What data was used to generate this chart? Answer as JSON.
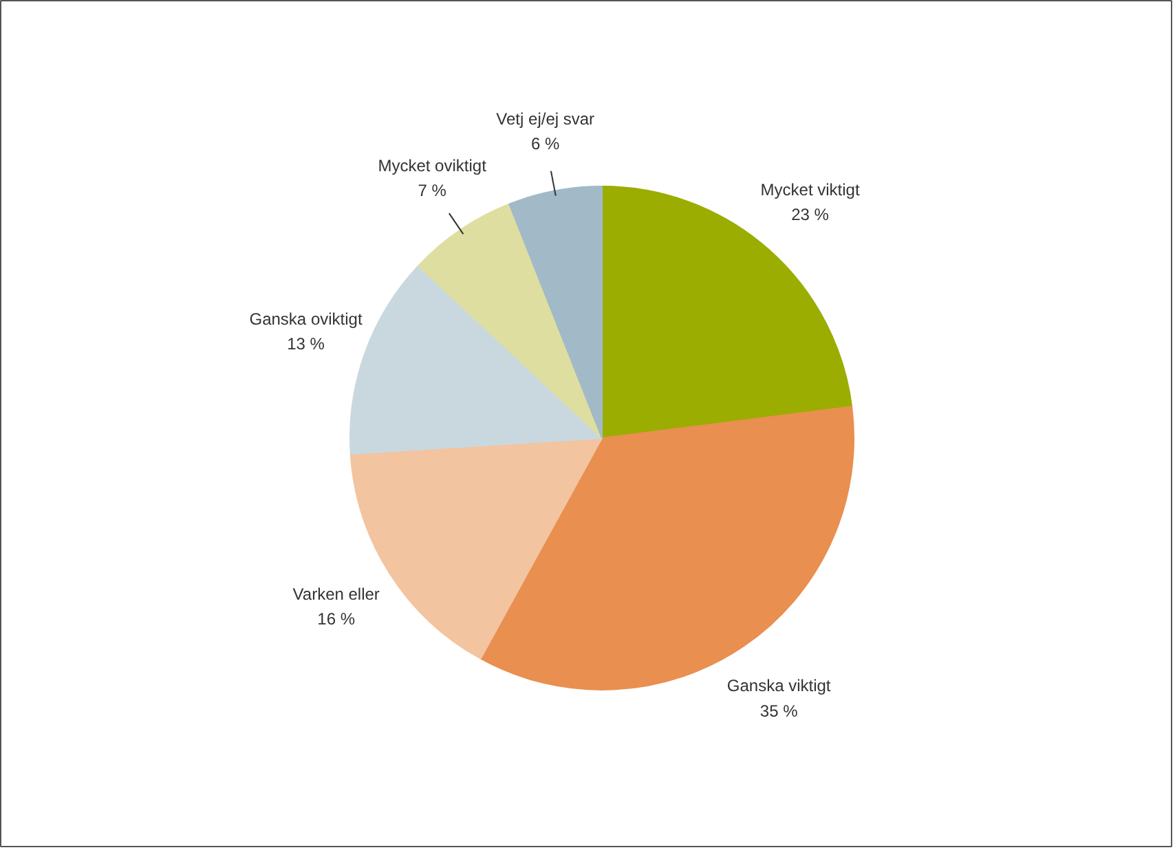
{
  "chart_data": {
    "type": "pie",
    "categories": [
      "Mycket viktigt",
      "Ganska viktigt",
      "Varken eller",
      "Ganska oviktigt",
      "Mycket oviktigt",
      "Vetj ej/ej svar"
    ],
    "values": [
      23,
      35,
      16,
      13,
      7,
      6
    ],
    "value_labels": [
      "23 %",
      "35 %",
      "16 %",
      "13 %",
      "7 %",
      "6 %"
    ],
    "colors": [
      "#9bad00",
      "#e98f50",
      "#f3c4a0",
      "#c9d8df",
      "#dedea0",
      "#a2bac7"
    ]
  }
}
